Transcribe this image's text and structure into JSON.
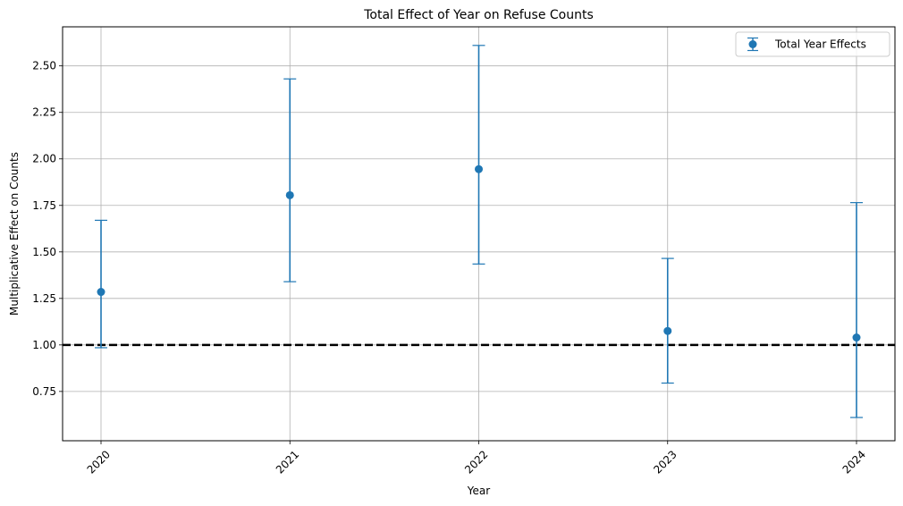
{
  "chart_data": {
    "type": "errorbar",
    "title": "Total Effect of Year on Refuse Counts",
    "xlabel": "Year",
    "ylabel": "Multiplicative Effect on Counts",
    "categories": [
      "2020",
      "2021",
      "2022",
      "2023",
      "2024"
    ],
    "series": [
      {
        "name": "Total Year Effects",
        "color": "#1f77b4",
        "values": [
          1.285,
          1.805,
          1.945,
          1.075,
          1.04
        ],
        "lower": [
          0.985,
          1.34,
          1.435,
          0.795,
          0.61
        ],
        "upper": [
          1.67,
          2.43,
          2.61,
          1.465,
          1.765
        ]
      }
    ],
    "reference_line": {
      "y": 1.0,
      "style": "dashed",
      "color": "#000000"
    },
    "ylim": [
      0.485,
      2.71
    ],
    "yticks": [
      "0.75",
      "1.00",
      "1.25",
      "1.50",
      "1.75",
      "2.00",
      "2.25",
      "2.50"
    ],
    "grid": true,
    "legend_position": "top-right"
  }
}
